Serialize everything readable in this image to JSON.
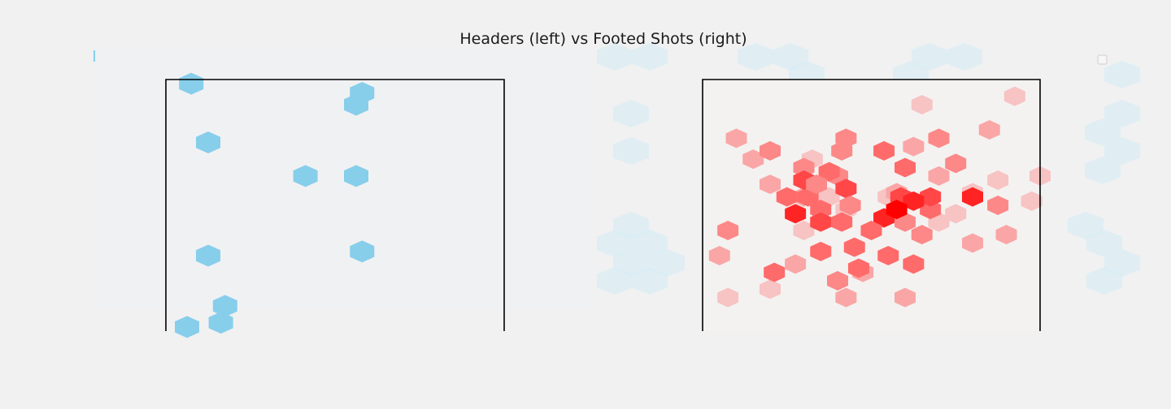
{
  "chart_data": {
    "type": "heatmap",
    "title": "Headers (left) vs Footed Shots (right)",
    "colors": {
      "background": "#f1f1f1",
      "header_hex": "#87ceeb",
      "shot_max": "#ff0000",
      "shot_mid": "#ff6b6b",
      "shot_low": "#f7c3c3",
      "pitch_line": "#000000"
    },
    "panels": [
      {
        "name": "headers",
        "x": [
          [
            2.5,
            12.0
          ],
          [
            3.2,
            13.4
          ],
          [
            -3.5,
            3.5
          ],
          [
            2.5,
            3.5
          ],
          [
            3.2,
            -5.5
          ],
          [
            -17.0,
            14.5
          ],
          [
            -15.0,
            7.5
          ],
          [
            -15.0,
            -6.0
          ],
          [
            -17.5,
            -14.5
          ],
          [
            -13.5,
            -14.0
          ],
          [
            -13.0,
            -12.0
          ]
        ],
        "values": [
          1,
          1,
          1,
          1,
          1,
          1,
          1,
          1,
          1,
          1,
          1
        ]
      },
      {
        "name": "footed shots",
        "points": [
          [
            15.0,
            3.0,
            1
          ],
          [
            20.0,
            3.5,
            1
          ],
          [
            -5.0,
            1.0,
            1
          ],
          [
            -8.0,
            -3.0,
            1
          ],
          [
            -3.0,
            -0.5,
            1
          ],
          [
            2.0,
            1.0,
            1
          ],
          [
            10.0,
            -1.0,
            1
          ],
          [
            12.0,
            1.5,
            1
          ],
          [
            6.0,
            12.0,
            1
          ],
          [
            17.0,
            13.0,
            1
          ],
          [
            19.0,
            0.5,
            1
          ],
          [
            8.0,
            -2.0,
            1
          ],
          [
            -12.0,
            -10.0,
            1
          ],
          [
            -7.0,
            5.5,
            1
          ],
          [
            -17.0,
            -11.0,
            1
          ],
          [
            -8.0,
            1.0,
            2
          ],
          [
            -3.0,
            -11.0,
            2
          ],
          [
            4.0,
            -11.0,
            2
          ],
          [
            -14.0,
            5.5,
            2
          ],
          [
            -12.0,
            2.5,
            2
          ],
          [
            -16.0,
            8.0,
            2
          ],
          [
            -18.0,
            -6.0,
            2
          ],
          [
            16.0,
            -3.5,
            2
          ],
          [
            14.0,
            9.0,
            2
          ],
          [
            12.0,
            -4.5,
            2
          ],
          [
            5.0,
            7.0,
            2
          ],
          [
            3.0,
            1.5,
            2
          ],
          [
            -9.0,
            -7.0,
            2
          ],
          [
            -1.0,
            -8.0,
            2
          ],
          [
            8.0,
            3.5,
            2
          ],
          [
            -4.0,
            3.5,
            3
          ],
          [
            -8.0,
            4.5,
            3
          ],
          [
            -3.0,
            8.0,
            3
          ],
          [
            4.0,
            -2.0,
            3
          ],
          [
            10.0,
            5.0,
            3
          ],
          [
            -12.0,
            6.5,
            3
          ],
          [
            -17.0,
            -3.0,
            3
          ],
          [
            15.0,
            0.0,
            3
          ],
          [
            -4.0,
            -9.0,
            3
          ],
          [
            6.0,
            -3.5,
            3
          ],
          [
            -7.5,
            1.0,
            4
          ],
          [
            5.0,
            -7.0,
            4
          ],
          [
            -1.5,
            -7.5,
            4
          ],
          [
            -6.0,
            -5.5,
            4
          ],
          [
            4.0,
            4.5,
            4
          ],
          [
            7.0,
            -0.5,
            4
          ],
          [
            -6.0,
            -0.5,
            4
          ],
          [
            -3.5,
            -2.0,
            4
          ],
          [
            2.0,
            -6.0,
            4
          ],
          [
            1.5,
            6.5,
            4
          ],
          [
            -2.0,
            -5.0,
            4
          ],
          [
            -5.0,
            4.0,
            4
          ],
          [
            -10.0,
            1.0,
            4
          ],
          [
            7.0,
            1.0,
            5
          ],
          [
            -8.0,
            3.0,
            5
          ],
          [
            3.5,
            1.0,
            5
          ],
          [
            12.0,
            1.0,
            6
          ],
          [
            1.5,
            -1.5,
            6
          ],
          [
            0.0,
            -3.0,
            4
          ],
          [
            5.0,
            0.5,
            6
          ],
          [
            3.0,
            -0.5,
            7
          ],
          [
            -3.0,
            2.0,
            5
          ],
          [
            -6.0,
            -2.0,
            5
          ],
          [
            -9.0,
            -1.0,
            6
          ],
          [
            -11.5,
            -8.0,
            4
          ],
          [
            -3.5,
            6.5,
            3
          ],
          [
            8.0,
            8.0,
            3
          ],
          [
            -2.5,
            0.0,
            3
          ],
          [
            -6.5,
            2.5,
            3
          ]
        ]
      }
    ]
  }
}
